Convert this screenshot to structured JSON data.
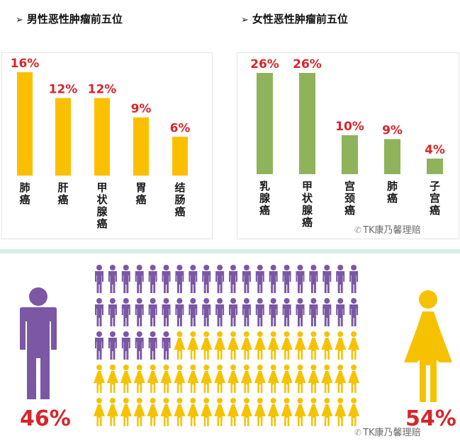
{
  "male_panel": {
    "title": "男性恶性肿瘤前五位",
    "arrow": "➢"
  },
  "female_panel": {
    "title": "女性恶性肿瘤前五位",
    "arrow": "➢"
  },
  "watermark": {
    "text": "TK康乃馨理赔",
    "icon": "wechat-icon"
  },
  "colors": {
    "male_bar": "#fac000",
    "female_bar": "#8fb35a",
    "value_label": "#d7252b",
    "male_figure": "#7b57a4",
    "female_figure": "#f6c200"
  },
  "chart_data": [
    {
      "type": "bar",
      "title": "男性恶性肿瘤前五位",
      "categories": [
        "肺癌",
        "肝癌",
        "甲状腺癌",
        "胃癌",
        "结肠癌"
      ],
      "values": [
        16,
        12,
        12,
        9,
        6
      ],
      "value_labels": [
        "16%",
        "12%",
        "12%",
        "9%",
        "6%"
      ],
      "unit": "%",
      "ylim": [
        0,
        16
      ],
      "grid": false
    },
    {
      "type": "bar",
      "title": "女性恶性肿瘤前五位",
      "categories": [
        "乳腺癌",
        "甲状腺癌",
        "宫颈癌",
        "肺癌",
        "子宫癌"
      ],
      "values": [
        26,
        26,
        10,
        9,
        4
      ],
      "value_labels": [
        "26%",
        "26%",
        "10%",
        "9%",
        "4%"
      ],
      "unit": "%",
      "ylim": [
        0,
        26
      ],
      "grid": false
    },
    {
      "type": "pictogram",
      "total_icons": 100,
      "series": [
        {
          "name": "male",
          "value": 46,
          "label": "46%",
          "color": "#7b57a4"
        },
        {
          "name": "female",
          "value": 54,
          "label": "54%",
          "color": "#f6c200"
        }
      ]
    }
  ]
}
